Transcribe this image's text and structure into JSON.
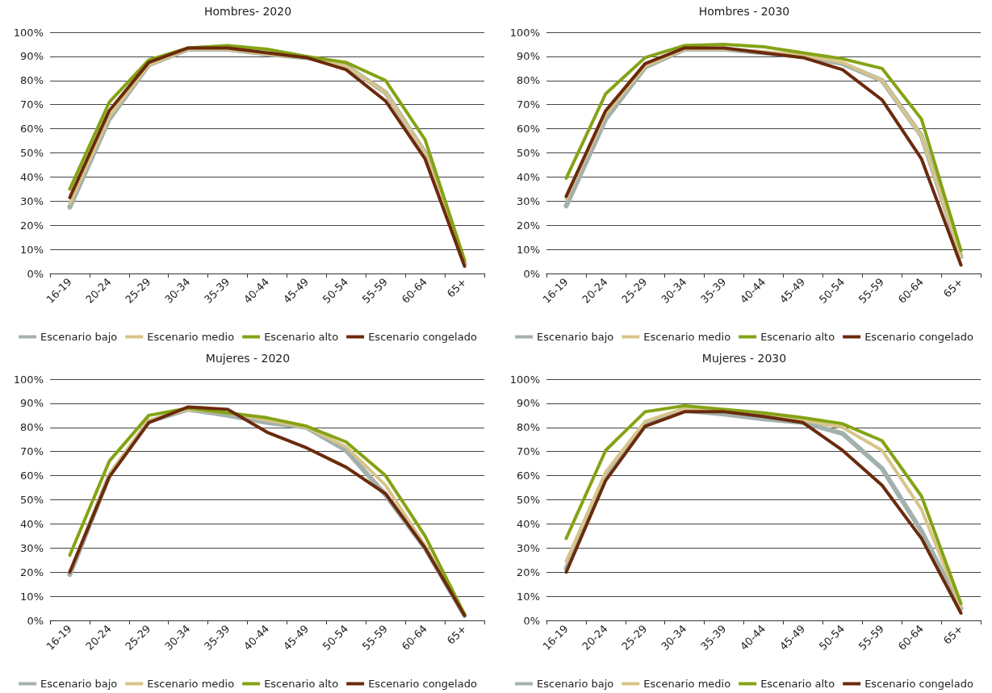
{
  "chart_data": [
    {
      "type": "line",
      "title": "Hombres- 2020",
      "categories": [
        "16-19",
        "20-24",
        "25-29",
        "30-34",
        "35-39",
        "40-44",
        "45-49",
        "50-54",
        "55-59",
        "60-64",
        "65+"
      ],
      "series": [
        {
          "name": "Escenario bajo",
          "color": "#a3b1ae",
          "values": [
            27.5,
            64,
            86.5,
            93,
            93,
            91,
            89.5,
            86,
            75,
            50,
            4
          ]
        },
        {
          "name": "Escenario medio",
          "color": "#d8c48a",
          "values": [
            29,
            65,
            86.5,
            93,
            93,
            91,
            89.5,
            86,
            75,
            50,
            4
          ]
        },
        {
          "name": "Escenario alto",
          "color": "#84a315",
          "values": [
            35,
            71,
            88.5,
            93.5,
            94.5,
            93,
            90,
            87.5,
            80,
            55.5,
            5.5
          ]
        },
        {
          "name": "Escenario congelado",
          "color": "#6b2a0c",
          "values": [
            31.5,
            67.5,
            87.5,
            93.5,
            93.5,
            91.5,
            89.5,
            84.5,
            71.5,
            47.5,
            3
          ]
        }
      ],
      "ylim": [
        0,
        100
      ],
      "yticks": [
        {
          "value": 0,
          "label": "0%"
        },
        {
          "value": 10,
          "label": "10%"
        },
        {
          "value": 20,
          "label": "20%"
        },
        {
          "value": 30,
          "label": "30%"
        },
        {
          "value": 40,
          "label": "40%"
        },
        {
          "value": 50,
          "label": "50%"
        },
        {
          "value": 60,
          "label": "60%"
        },
        {
          "value": 70,
          "label": "70%"
        },
        {
          "value": 80,
          "label": "80%"
        },
        {
          "value": 90,
          "label": "90%"
        },
        {
          "value": 100,
          "label": "100%"
        }
      ],
      "grid": "y",
      "legend": "bottom",
      "marker": "none",
      "line_style": "solid"
    },
    {
      "type": "line",
      "title": "Hombres - 2030",
      "categories": [
        "16-19",
        "20-24",
        "25-29",
        "30-34",
        "35-39",
        "40-44",
        "45-49",
        "50-54",
        "55-59",
        "60-64",
        "65+"
      ],
      "series": [
        {
          "name": "Escenario bajo",
          "color": "#a3b1ae",
          "values": [
            28,
            64,
            85.5,
            93,
            93,
            91.5,
            90,
            87,
            80,
            57,
            7
          ]
        },
        {
          "name": "Escenario medio",
          "color": "#d8c48a",
          "values": [
            31,
            66,
            86,
            93,
            93,
            92,
            90.5,
            87.5,
            80,
            57,
            7
          ]
        },
        {
          "name": "Escenario alto",
          "color": "#84a315",
          "values": [
            39.5,
            74.5,
            89.5,
            94.5,
            95,
            94,
            91.5,
            89,
            85,
            64,
            9.5
          ]
        },
        {
          "name": "Escenario congelado",
          "color": "#6b2a0c",
          "values": [
            32,
            67.5,
            87,
            93.5,
            93.5,
            91.5,
            89.5,
            84.5,
            72,
            47.5,
            3.5
          ]
        }
      ],
      "ylim": [
        0,
        100
      ],
      "yticks": [
        {
          "value": 0,
          "label": "0%"
        },
        {
          "value": 10,
          "label": "10%"
        },
        {
          "value": 20,
          "label": "20%"
        },
        {
          "value": 30,
          "label": "30%"
        },
        {
          "value": 40,
          "label": "40%"
        },
        {
          "value": 50,
          "label": "50%"
        },
        {
          "value": 60,
          "label": "60%"
        },
        {
          "value": 70,
          "label": "70%"
        },
        {
          "value": 80,
          "label": "80%"
        },
        {
          "value": 90,
          "label": "90%"
        },
        {
          "value": 100,
          "label": "100%"
        }
      ],
      "grid": "y",
      "legend": "bottom",
      "marker": "none",
      "line_style": "solid"
    },
    {
      "type": "line",
      "title": "Mujeres - 2020",
      "categories": [
        "16-19",
        "20-24",
        "25-29",
        "30-34",
        "35-39",
        "40-44",
        "45-49",
        "50-54",
        "55-59",
        "60-64",
        "65+"
      ],
      "series": [
        {
          "name": "Escenario bajo",
          "color": "#a3b1ae",
          "values": [
            19,
            60,
            82.5,
            87.5,
            85,
            82,
            80,
            70.5,
            52,
            30,
            2
          ]
        },
        {
          "name": "Escenario medio",
          "color": "#d8c48a",
          "values": [
            20,
            60.5,
            83,
            87.5,
            86,
            83,
            80,
            72,
            56,
            31,
            2
          ]
        },
        {
          "name": "Escenario alto",
          "color": "#84a315",
          "values": [
            27,
            66,
            85,
            88,
            86,
            84,
            80.5,
            74,
            60,
            35,
            2.5
          ]
        },
        {
          "name": "Escenario congelado",
          "color": "#6b2a0c",
          "values": [
            20,
            59.5,
            82,
            88.5,
            87.5,
            78,
            71.5,
            63.5,
            52.5,
            30,
            2
          ]
        }
      ],
      "ylim": [
        0,
        100
      ],
      "yticks": [
        {
          "value": 0,
          "label": "0%"
        },
        {
          "value": 10,
          "label": "10%"
        },
        {
          "value": 20,
          "label": "20%"
        },
        {
          "value": 30,
          "label": "30%"
        },
        {
          "value": 40,
          "label": "40%"
        },
        {
          "value": 50,
          "label": "50%"
        },
        {
          "value": 60,
          "label": "60%"
        },
        {
          "value": 70,
          "label": "70%"
        },
        {
          "value": 80,
          "label": "80%"
        },
        {
          "value": 90,
          "label": "90%"
        },
        {
          "value": 100,
          "label": "100%"
        }
      ],
      "grid": "y",
      "legend": "bottom",
      "marker": "none",
      "line_style": "solid"
    },
    {
      "type": "line",
      "title": "Mujeres - 2030",
      "categories": [
        "16-19",
        "20-24",
        "25-29",
        "30-34",
        "35-39",
        "40-44",
        "45-49",
        "50-54",
        "55-59",
        "60-64",
        "65+"
      ],
      "series": [
        {
          "name": "Escenario bajo",
          "color": "#a3b1ae",
          "values": [
            21.5,
            59,
            81,
            87,
            85.5,
            83.5,
            82,
            77.5,
            63,
            37,
            5
          ]
        },
        {
          "name": "Escenario medio",
          "color": "#d8c48a",
          "values": [
            24.5,
            61.5,
            82.5,
            88,
            87,
            85,
            83,
            80,
            70.5,
            46,
            5.5
          ]
        },
        {
          "name": "Escenario alto",
          "color": "#84a315",
          "values": [
            34,
            70.5,
            86.5,
            89,
            87.5,
            86,
            84,
            81.5,
            74.5,
            51.5,
            7
          ]
        },
        {
          "name": "Escenario congelado",
          "color": "#6b2a0c",
          "values": [
            20,
            58,
            80.5,
            86.5,
            86.5,
            84.5,
            82,
            70.5,
            56,
            34,
            3
          ]
        }
      ],
      "ylim": [
        0,
        100
      ],
      "yticks": [
        {
          "value": 0,
          "label": "0%"
        },
        {
          "value": 10,
          "label": "10%"
        },
        {
          "value": 20,
          "label": "20%"
        },
        {
          "value": 30,
          "label": "30%"
        },
        {
          "value": 40,
          "label": "40%"
        },
        {
          "value": 50,
          "label": "50%"
        },
        {
          "value": 60,
          "label": "60%"
        },
        {
          "value": 70,
          "label": "70%"
        },
        {
          "value": 80,
          "label": "80%"
        },
        {
          "value": 90,
          "label": "90%"
        },
        {
          "value": 100,
          "label": "100%"
        }
      ],
      "grid": "y",
      "legend": "bottom",
      "marker": "none",
      "line_style": "solid"
    }
  ]
}
